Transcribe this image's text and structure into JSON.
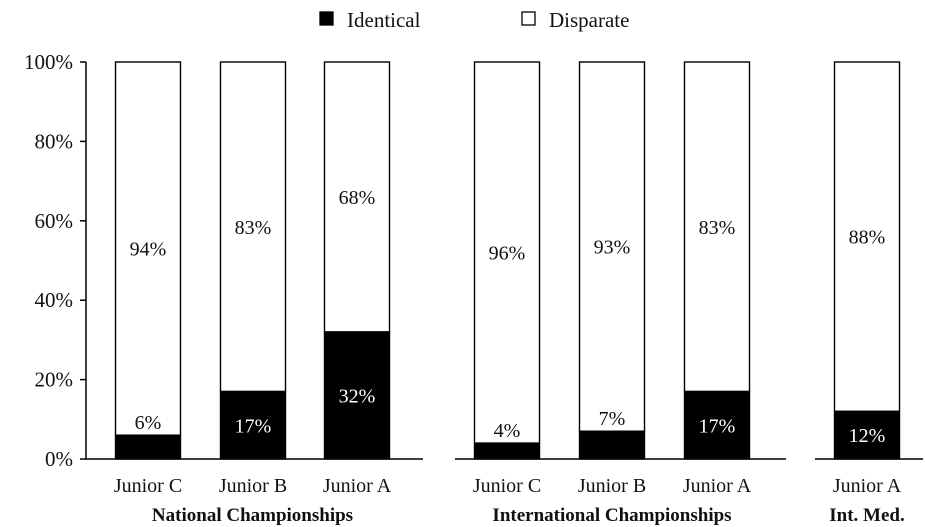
{
  "chart_data": {
    "type": "bar",
    "stacked": true,
    "normalized": true,
    "legend": {
      "position": "top-center",
      "entries": [
        {
          "name": "Identical",
          "color": "#000000"
        },
        {
          "name": "Disparate",
          "color": "#ffffff"
        }
      ]
    },
    "y_ticks": [
      "0%",
      "20%",
      "40%",
      "60%",
      "80%",
      "100%"
    ],
    "ylim": [
      0,
      100
    ],
    "grid": false,
    "panels": [
      {
        "group_label": "National Championships",
        "categories": [
          "Junior C",
          "Junior B",
          "Junior A"
        ],
        "series": [
          {
            "name": "Identical",
            "values": [
              6,
              17,
              32
            ],
            "labels": [
              "6%",
              "17%",
              "32%"
            ]
          },
          {
            "name": "Disparate",
            "values": [
              94,
              83,
              68
            ],
            "labels": [
              "94%",
              "83%",
              "68%"
            ]
          }
        ]
      },
      {
        "group_label": "International Championships",
        "categories": [
          "Junior C",
          "Junior B",
          "Junior A"
        ],
        "series": [
          {
            "name": "Identical",
            "values": [
              4,
              7,
              17
            ],
            "labels": [
              "4%",
              "7%",
              "17%"
            ]
          },
          {
            "name": "Disparate",
            "values": [
              96,
              93,
              83
            ],
            "labels": [
              "96%",
              "93%",
              "83%"
            ]
          }
        ]
      },
      {
        "group_label": "Int. Med.",
        "categories": [
          "Junior A"
        ],
        "series": [
          {
            "name": "Identical",
            "values": [
              12
            ],
            "labels": [
              "12%"
            ]
          },
          {
            "name": "Disparate",
            "values": [
              88
            ],
            "labels": [
              "88%"
            ]
          }
        ]
      }
    ]
  }
}
